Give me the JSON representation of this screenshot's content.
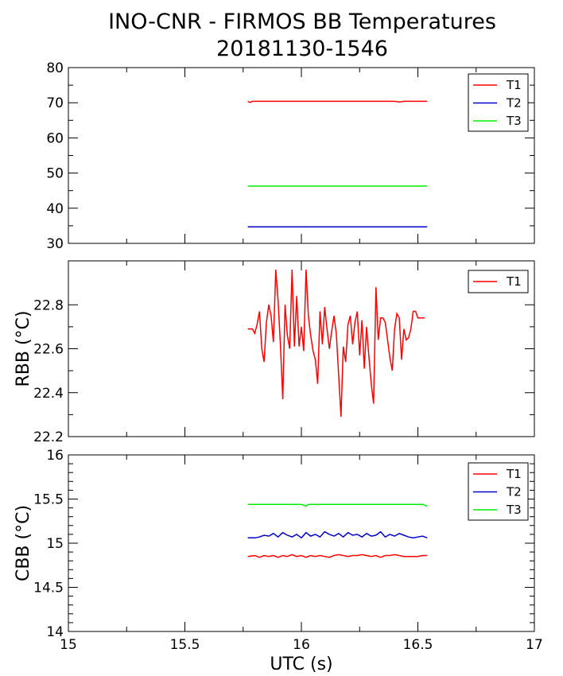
{
  "title_line1": "INO-CNR - FIRMOS BB Temperatures",
  "title_line2": "20181130-1546",
  "colors": {
    "T1": "#ff0000",
    "T2": "#0000cc",
    "T3": "#00ee00"
  },
  "chart_data": [
    {
      "type": "line",
      "ylabel": "",
      "xlabel": "",
      "xlim": [
        15,
        17
      ],
      "ylim": [
        30,
        80
      ],
      "yticks": [
        "80",
        "70",
        "60",
        "50",
        "40",
        "30"
      ],
      "xticks": [],
      "legend": "top-right",
      "grid": false,
      "series": [
        {
          "name": "T1",
          "color": "#ff0000",
          "x": [
            15.77,
            15.78,
            15.79,
            16.0,
            16.2,
            16.4,
            16.42,
            16.44,
            16.54
          ],
          "y": [
            70.4,
            70.1,
            70.4,
            70.4,
            70.4,
            70.4,
            70.2,
            70.4,
            70.4
          ]
        },
        {
          "name": "T2",
          "color": "#0000cc",
          "x": [
            15.77,
            16.54
          ],
          "y": [
            34.7,
            34.7
          ]
        },
        {
          "name": "T3",
          "color": "#00ee00",
          "x": [
            15.77,
            16.54
          ],
          "y": [
            46.3,
            46.3
          ]
        }
      ]
    },
    {
      "type": "line",
      "ylabel": "RBB (°C)",
      "xlabel": "",
      "xlim": [
        15,
        17
      ],
      "ylim": [
        22.2,
        23.0
      ],
      "yticks": [
        "22.8",
        "22.6",
        "22.4",
        "22.2"
      ],
      "xticks": [],
      "legend": "top-right",
      "grid": false,
      "series": [
        {
          "name": "T1",
          "color": "#ff0000",
          "x": [
            15.77,
            15.79,
            15.8,
            15.81,
            15.82,
            15.83,
            15.84,
            15.85,
            15.86,
            15.87,
            15.88,
            15.89,
            15.9,
            15.91,
            15.92,
            15.93,
            15.94,
            15.95,
            15.96,
            15.97,
            15.98,
            15.99,
            16.0,
            16.01,
            16.02,
            16.03,
            16.04,
            16.05,
            16.06,
            16.07,
            16.08,
            16.09,
            16.1,
            16.11,
            16.12,
            16.13,
            16.14,
            16.15,
            16.16,
            16.17,
            16.18,
            16.19,
            16.2,
            16.21,
            16.22,
            16.23,
            16.24,
            16.25,
            16.26,
            16.27,
            16.28,
            16.29,
            16.3,
            16.31,
            16.32,
            16.33,
            16.34,
            16.35,
            16.36,
            16.37,
            16.38,
            16.39,
            16.4,
            16.41,
            16.42,
            16.43,
            16.44,
            16.45,
            16.46,
            16.47,
            16.48,
            16.49,
            16.5,
            16.51,
            16.52,
            16.53
          ],
          "y": [
            22.69,
            22.69,
            22.67,
            22.71,
            22.77,
            22.6,
            22.54,
            22.72,
            22.8,
            22.75,
            22.63,
            22.96,
            22.82,
            22.62,
            22.37,
            22.8,
            22.66,
            22.6,
            22.96,
            22.61,
            22.84,
            22.61,
            22.7,
            22.59,
            22.96,
            22.75,
            22.66,
            22.59,
            22.55,
            22.44,
            22.77,
            22.62,
            22.79,
            22.69,
            22.6,
            22.68,
            22.75,
            22.67,
            22.48,
            22.29,
            22.61,
            22.54,
            22.71,
            22.75,
            22.62,
            22.72,
            22.77,
            22.57,
            22.73,
            22.51,
            22.7,
            22.56,
            22.44,
            22.35,
            22.88,
            22.64,
            22.74,
            22.74,
            22.72,
            22.64,
            22.56,
            22.5,
            22.69,
            22.76,
            22.74,
            22.55,
            22.69,
            22.64,
            22.65,
            22.69,
            22.77,
            22.77,
            22.74,
            22.74,
            22.74,
            22.74
          ]
        }
      ]
    },
    {
      "type": "line",
      "ylabel": "CBB (°C)",
      "xlabel": "UTC (s)",
      "xlim": [
        15,
        17
      ],
      "ylim": [
        14,
        16
      ],
      "yticks": [
        "16",
        "15.5",
        "15",
        "14.5",
        "14"
      ],
      "xticks": [
        "15",
        "15.5",
        "16",
        "16.5",
        "17"
      ],
      "legend": "top-right",
      "grid": false,
      "series": [
        {
          "name": "T1",
          "color": "#ff0000",
          "x": [
            15.77,
            15.8,
            15.82,
            15.84,
            15.86,
            15.88,
            15.9,
            15.92,
            15.94,
            15.96,
            15.98,
            16.0,
            16.02,
            16.04,
            16.06,
            16.08,
            16.1,
            16.12,
            16.14,
            16.16,
            16.18,
            16.2,
            16.22,
            16.24,
            16.26,
            16.28,
            16.3,
            16.32,
            16.34,
            16.36,
            16.38,
            16.4,
            16.42,
            16.44,
            16.46,
            16.48,
            16.5,
            16.52,
            16.54
          ],
          "y": [
            14.85,
            14.86,
            14.84,
            14.86,
            14.85,
            14.86,
            14.84,
            14.86,
            14.85,
            14.87,
            14.85,
            14.86,
            14.84,
            14.86,
            14.85,
            14.86,
            14.85,
            14.84,
            14.86,
            14.87,
            14.86,
            14.85,
            14.86,
            14.86,
            14.87,
            14.86,
            14.85,
            14.86,
            14.84,
            14.86,
            14.86,
            14.87,
            14.86,
            14.85,
            14.85,
            14.85,
            14.85,
            14.86,
            14.86
          ]
        },
        {
          "name": "T2",
          "color": "#0000cc",
          "x": [
            15.77,
            15.8,
            15.82,
            15.84,
            15.86,
            15.88,
            15.9,
            15.92,
            15.94,
            15.96,
            15.98,
            16.0,
            16.02,
            16.04,
            16.06,
            16.08,
            16.1,
            16.12,
            16.14,
            16.16,
            16.18,
            16.2,
            16.22,
            16.24,
            16.26,
            16.28,
            16.3,
            16.32,
            16.34,
            16.36,
            16.38,
            16.4,
            16.42,
            16.44,
            16.46,
            16.48,
            16.5,
            16.52,
            16.54
          ],
          "y": [
            15.06,
            15.06,
            15.07,
            15.09,
            15.08,
            15.11,
            15.07,
            15.12,
            15.09,
            15.07,
            15.1,
            15.06,
            15.12,
            15.08,
            15.1,
            15.07,
            15.13,
            15.1,
            15.08,
            15.11,
            15.07,
            15.12,
            15.09,
            15.1,
            15.07,
            15.11,
            15.08,
            15.09,
            15.13,
            15.07,
            15.1,
            15.08,
            15.11,
            15.09,
            15.07,
            15.06,
            15.07,
            15.08,
            15.06
          ]
        },
        {
          "name": "T3",
          "color": "#00ee00",
          "x": [
            15.77,
            16.0,
            16.02,
            16.03,
            16.05,
            16.52,
            16.54
          ],
          "y": [
            15.44,
            15.44,
            15.42,
            15.44,
            15.44,
            15.44,
            15.42
          ]
        }
      ]
    }
  ]
}
